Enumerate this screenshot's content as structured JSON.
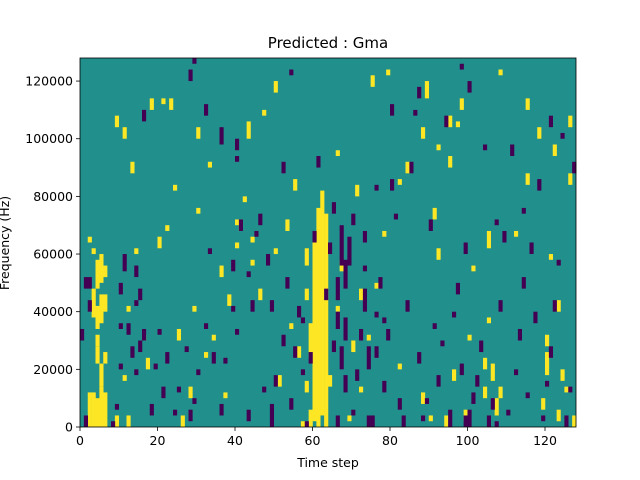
{
  "chart_data": {
    "type": "heatmap",
    "title": "Predicted : Gma",
    "xlabel": "Time step",
    "ylabel": "Frequency (Hz)",
    "xlim": [
      0,
      128
    ],
    "ylim": [
      0,
      128000
    ],
    "x_ticks": [
      0,
      20,
      40,
      60,
      80,
      100,
      120
    ],
    "y_ticks": [
      0,
      20000,
      40000,
      60000,
      80000,
      100000,
      120000
    ],
    "x_tick_labels": [
      "0",
      "20",
      "40",
      "60",
      "80",
      "100",
      "120"
    ],
    "y_tick_labels": [
      "0",
      "20000",
      "40000",
      "60000",
      "80000",
      "100000",
      "120000"
    ],
    "bins_x": 128,
    "bins_y": 128,
    "bin_height_hz": 1000,
    "colormap": "viridis",
    "value_range": [
      0,
      1
    ],
    "background_value": 0.5,
    "colors": {
      "low": "#440154",
      "mid": "#21908c",
      "high": "#fde725"
    },
    "high_cells": [
      [
        2,
        0,
        12
      ],
      [
        3,
        0,
        12
      ],
      [
        4,
        0,
        10
      ],
      [
        5,
        0,
        14
      ],
      [
        6,
        0,
        12
      ],
      [
        5,
        14,
        22
      ],
      [
        4,
        22,
        28
      ],
      [
        6,
        22,
        26
      ],
      [
        4,
        34,
        42
      ],
      [
        5,
        36,
        46
      ],
      [
        3,
        38,
        48
      ],
      [
        6,
        40,
        46
      ],
      [
        4,
        48,
        58
      ],
      [
        5,
        50,
        60
      ],
      [
        6,
        52,
        56
      ],
      [
        4,
        28,
        32
      ],
      [
        2,
        64,
        66
      ],
      [
        3,
        60,
        62
      ],
      [
        9,
        0,
        4
      ],
      [
        11,
        16,
        18
      ],
      [
        12,
        40,
        42
      ],
      [
        13,
        88,
        92
      ],
      [
        11,
        100,
        104
      ],
      [
        9,
        104,
        108
      ],
      [
        14,
        60,
        62
      ],
      [
        12,
        0,
        4
      ],
      [
        16,
        30,
        32
      ],
      [
        17,
        20,
        24
      ],
      [
        20,
        62,
        66
      ],
      [
        22,
        68,
        70
      ],
      [
        24,
        82,
        84
      ],
      [
        23,
        110,
        114
      ],
      [
        18,
        110,
        114
      ],
      [
        21,
        112,
        114
      ],
      [
        25,
        30,
        34
      ],
      [
        26,
        0,
        4
      ],
      [
        28,
        10,
        14
      ],
      [
        29,
        40,
        42
      ],
      [
        30,
        74,
        76
      ],
      [
        32,
        24,
        26
      ],
      [
        34,
        30,
        32
      ],
      [
        36,
        52,
        56
      ],
      [
        37,
        10,
        12
      ],
      [
        38,
        42,
        46
      ],
      [
        40,
        62,
        64
      ],
      [
        41,
        68,
        72
      ],
      [
        42,
        78,
        80
      ],
      [
        43,
        100,
        106
      ],
      [
        44,
        56,
        58
      ],
      [
        46,
        44,
        48
      ],
      [
        50,
        60,
        62
      ],
      [
        51,
        14,
        18
      ],
      [
        53,
        68,
        72
      ],
      [
        54,
        34,
        36
      ],
      [
        56,
        24,
        28
      ],
      [
        57,
        0,
        2
      ],
      [
        58,
        12,
        16
      ],
      [
        59,
        0,
        6
      ],
      [
        60,
        2,
        64
      ],
      [
        61,
        0,
        76
      ],
      [
        62,
        4,
        82
      ],
      [
        63,
        0,
        74
      ],
      [
        59,
        24,
        36
      ],
      [
        58,
        44,
        48
      ],
      [
        58,
        56,
        62
      ],
      [
        64,
        14,
        18
      ],
      [
        66,
        40,
        42
      ],
      [
        67,
        54,
        58
      ],
      [
        69,
        2,
        4
      ],
      [
        70,
        26,
        30
      ],
      [
        72,
        12,
        14
      ],
      [
        72,
        44,
        48
      ],
      [
        74,
        30,
        32
      ],
      [
        76,
        48,
        50
      ],
      [
        75,
        118,
        122
      ],
      [
        78,
        66,
        68
      ],
      [
        79,
        122,
        124
      ],
      [
        82,
        20,
        22
      ],
      [
        84,
        88,
        92
      ],
      [
        88,
        8,
        12
      ],
      [
        89,
        114,
        120
      ],
      [
        90,
        2,
        4
      ],
      [
        91,
        72,
        76
      ],
      [
        92,
        58,
        62
      ],
      [
        94,
        0,
        4
      ],
      [
        95,
        90,
        94
      ],
      [
        95,
        104,
        108
      ],
      [
        96,
        16,
        20
      ],
      [
        98,
        110,
        114
      ],
      [
        99,
        2,
        6
      ],
      [
        100,
        30,
        32
      ],
      [
        101,
        54,
        56
      ],
      [
        104,
        10,
        14
      ],
      [
        104,
        20,
        24
      ],
      [
        105,
        36,
        38
      ],
      [
        106,
        16,
        22
      ],
      [
        105,
        62,
        68
      ],
      [
        107,
        4,
        10
      ],
      [
        108,
        10,
        14
      ],
      [
        112,
        66,
        68
      ],
      [
        115,
        84,
        88
      ],
      [
        118,
        100,
        104
      ],
      [
        119,
        6,
        10
      ],
      [
        120,
        18,
        26
      ],
      [
        120,
        28,
        32
      ],
      [
        121,
        58,
        60
      ],
      [
        122,
        94,
        98
      ],
      [
        123,
        2,
        6
      ],
      [
        123,
        40,
        44
      ],
      [
        124,
        16,
        20
      ],
      [
        125,
        12,
        14
      ],
      [
        126,
        84,
        88
      ],
      [
        126,
        104,
        108
      ],
      [
        127,
        0,
        4
      ],
      [
        30,
        100,
        104
      ],
      [
        40,
        70,
        72
      ],
      [
        44,
        64,
        66
      ],
      [
        47,
        108,
        110
      ],
      [
        50,
        116,
        120
      ],
      [
        55,
        82,
        86
      ],
      [
        71,
        80,
        84
      ],
      [
        33,
        90,
        92
      ],
      [
        66,
        94,
        96
      ],
      [
        82,
        84,
        86
      ],
      [
        88,
        100,
        104
      ],
      [
        92,
        96,
        98
      ],
      [
        97,
        104,
        106
      ],
      [
        108,
        122,
        124
      ],
      [
        115,
        110,
        114
      ]
    ],
    "low_cells": [
      [
        1,
        0,
        4
      ],
      [
        0,
        30,
        34
      ],
      [
        1,
        48,
        52
      ],
      [
        2,
        48,
        52
      ],
      [
        2,
        40,
        44
      ],
      [
        8,
        0,
        2
      ],
      [
        9,
        6,
        8
      ],
      [
        10,
        20,
        22
      ],
      [
        10,
        34,
        36
      ],
      [
        10,
        46,
        50
      ],
      [
        11,
        54,
        60
      ],
      [
        12,
        32,
        36
      ],
      [
        13,
        24,
        28
      ],
      [
        14,
        42,
        44
      ],
      [
        14,
        18,
        20
      ],
      [
        15,
        26,
        30
      ],
      [
        15,
        44,
        48
      ],
      [
        14,
        52,
        56
      ],
      [
        16,
        30,
        34
      ],
      [
        18,
        4,
        8
      ],
      [
        19,
        20,
        22
      ],
      [
        20,
        32,
        34
      ],
      [
        21,
        10,
        14
      ],
      [
        22,
        22,
        26
      ],
      [
        24,
        4,
        6
      ],
      [
        25,
        12,
        14
      ],
      [
        27,
        26,
        28
      ],
      [
        28,
        2,
        6
      ],
      [
        29,
        8,
        10
      ],
      [
        30,
        18,
        20
      ],
      [
        32,
        34,
        36
      ],
      [
        33,
        60,
        62
      ],
      [
        34,
        22,
        26
      ],
      [
        36,
        4,
        8
      ],
      [
        37,
        22,
        24
      ],
      [
        39,
        54,
        58
      ],
      [
        40,
        32,
        34
      ],
      [
        40,
        92,
        94
      ],
      [
        40,
        96,
        100
      ],
      [
        41,
        68,
        72
      ],
      [
        43,
        2,
        6
      ],
      [
        44,
        40,
        44
      ],
      [
        45,
        66,
        68
      ],
      [
        47,
        12,
        14
      ],
      [
        49,
        0,
        8
      ],
      [
        48,
        56,
        60
      ],
      [
        49,
        40,
        44
      ],
      [
        50,
        14,
        18
      ],
      [
        52,
        28,
        32
      ],
      [
        53,
        48,
        52
      ],
      [
        54,
        6,
        10
      ],
      [
        56,
        38,
        42
      ],
      [
        57,
        18,
        20
      ],
      [
        57,
        36,
        38
      ],
      [
        58,
        0,
        2
      ],
      [
        59,
        22,
        26
      ],
      [
        60,
        64,
        68
      ],
      [
        61,
        90,
        94
      ],
      [
        64,
        60,
        64
      ],
      [
        65,
        74,
        78
      ],
      [
        65,
        26,
        30
      ],
      [
        66,
        0,
        4
      ],
      [
        66,
        34,
        40
      ],
      [
        66,
        44,
        52
      ],
      [
        67,
        20,
        28
      ],
      [
        67,
        56,
        70
      ],
      [
        68,
        12,
        18
      ],
      [
        68,
        30,
        38
      ],
      [
        68,
        48,
        58
      ],
      [
        69,
        56,
        66
      ],
      [
        70,
        70,
        74
      ],
      [
        70,
        4,
        6
      ],
      [
        71,
        16,
        20
      ],
      [
        72,
        30,
        34
      ],
      [
        73,
        40,
        48
      ],
      [
        73,
        54,
        56
      ],
      [
        73,
        64,
        68
      ],
      [
        74,
        0,
        4
      ],
      [
        74,
        20,
        28
      ],
      [
        75,
        0,
        4
      ],
      [
        76,
        24,
        28
      ],
      [
        76,
        38,
        40
      ],
      [
        76,
        82,
        84
      ],
      [
        77,
        48,
        52
      ],
      [
        78,
        12,
        16
      ],
      [
        78,
        36,
        38
      ],
      [
        79,
        30,
        34
      ],
      [
        80,
        82,
        86
      ],
      [
        81,
        72,
        74
      ],
      [
        82,
        6,
        10
      ],
      [
        83,
        0,
        4
      ],
      [
        84,
        40,
        44
      ],
      [
        85,
        88,
        92
      ],
      [
        86,
        108,
        110
      ],
      [
        87,
        22,
        26
      ],
      [
        88,
        2,
        4
      ],
      [
        89,
        8,
        10
      ],
      [
        90,
        68,
        72
      ],
      [
        91,
        34,
        36
      ],
      [
        92,
        14,
        18
      ],
      [
        93,
        28,
        30
      ],
      [
        95,
        0,
        6
      ],
      [
        96,
        38,
        40
      ],
      [
        97,
        46,
        50
      ],
      [
        98,
        18,
        22
      ],
      [
        99,
        60,
        64
      ],
      [
        99,
        0,
        4
      ],
      [
        100,
        0,
        6
      ],
      [
        101,
        8,
        12
      ],
      [
        102,
        14,
        18
      ],
      [
        103,
        26,
        30
      ],
      [
        104,
        96,
        98
      ],
      [
        105,
        0,
        4
      ],
      [
        106,
        6,
        10
      ],
      [
        107,
        0,
        2
      ],
      [
        108,
        40,
        44
      ],
      [
        109,
        64,
        68
      ],
      [
        110,
        4,
        6
      ],
      [
        111,
        94,
        98
      ],
      [
        112,
        18,
        20
      ],
      [
        113,
        30,
        34
      ],
      [
        114,
        48,
        52
      ],
      [
        115,
        10,
        12
      ],
      [
        116,
        60,
        64
      ],
      [
        117,
        36,
        40
      ],
      [
        118,
        82,
        86
      ],
      [
        119,
        2,
        4
      ],
      [
        120,
        14,
        16
      ],
      [
        121,
        24,
        28
      ],
      [
        122,
        40,
        44
      ],
      [
        123,
        56,
        58
      ],
      [
        124,
        100,
        102
      ],
      [
        125,
        0,
        4
      ],
      [
        126,
        12,
        14
      ],
      [
        127,
        88,
        92
      ],
      [
        28,
        120,
        124
      ],
      [
        29,
        126,
        128
      ],
      [
        36,
        98,
        104
      ],
      [
        39,
        40,
        42
      ],
      [
        43,
        52,
        54
      ],
      [
        54,
        122,
        124
      ],
      [
        55,
        24,
        28
      ],
      [
        80,
        108,
        112
      ],
      [
        100,
        116,
        120
      ],
      [
        107,
        70,
        72
      ],
      [
        114,
        74,
        76
      ],
      [
        121,
        104,
        108
      ],
      [
        87,
        114,
        118
      ],
      [
        94,
        104,
        108
      ],
      [
        98,
        124,
        126
      ],
      [
        32,
        108,
        112
      ],
      [
        16,
        106,
        110
      ],
      [
        52,
        88,
        92
      ],
      [
        46,
        70,
        74
      ],
      [
        63,
        44,
        48
      ]
    ]
  }
}
